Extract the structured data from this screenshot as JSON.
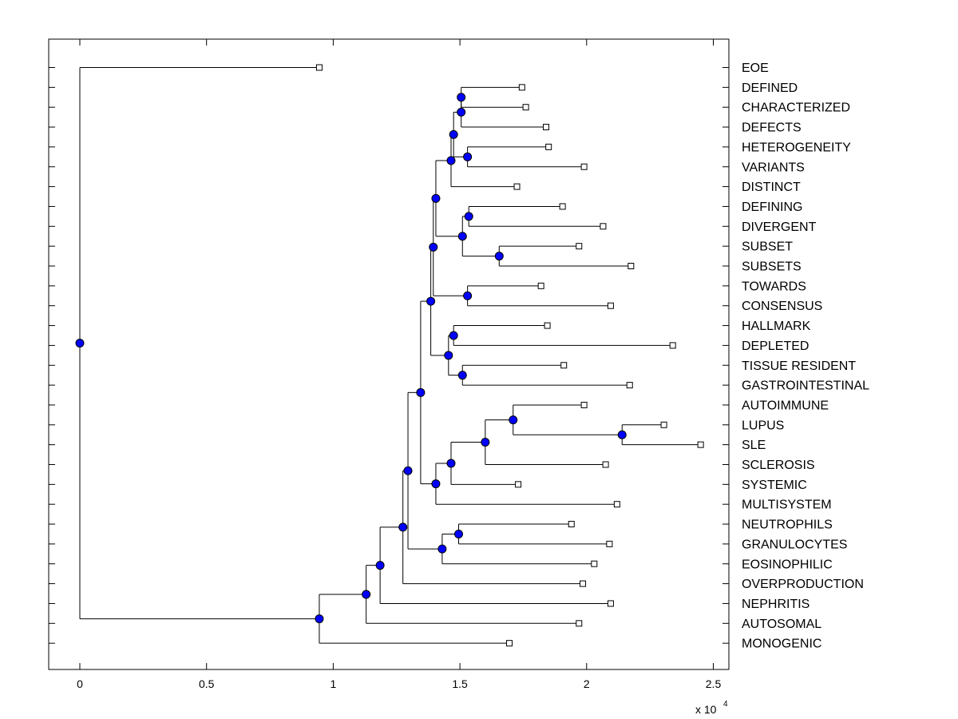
{
  "chart_data": {
    "type": "dendrogram",
    "orientation": "horizontal",
    "x_ticks": [
      0,
      0.5,
      1,
      1.5,
      2,
      2.5
    ],
    "x_tick_labels": [
      "0",
      "0.5",
      "1",
      "1.5",
      "2",
      "2.5"
    ],
    "x_scale_label": "x 10",
    "x_scale_exponent": "4",
    "xlim": [
      -0.12,
      2.56
    ],
    "leaves": [
      {
        "label": "EOE",
        "x": 0.945
      },
      {
        "label": "DEFINED",
        "x": 1.745
      },
      {
        "label": "CHARACTERIZED",
        "x": 1.76
      },
      {
        "label": "DEFECTS",
        "x": 1.84
      },
      {
        "label": "HETEROGENEITY",
        "x": 1.85
      },
      {
        "label": "VARIANTS",
        "x": 1.99
      },
      {
        "label": "DISTINCT",
        "x": 1.725
      },
      {
        "label": "DEFINING",
        "x": 1.905
      },
      {
        "label": "DIVERGENT",
        "x": 2.065
      },
      {
        "label": "SUBSET",
        "x": 1.97
      },
      {
        "label": "SUBSETS",
        "x": 2.175
      },
      {
        "label": "TOWARDS",
        "x": 1.82
      },
      {
        "label": "CONSENSUS",
        "x": 2.095
      },
      {
        "label": "HALLMARK",
        "x": 1.845
      },
      {
        "label": "DEPLETED",
        "x": 2.34
      },
      {
        "label": "TISSUE RESIDENT",
        "x": 1.91
      },
      {
        "label": "GASTROINTESTINAL",
        "x": 2.17
      },
      {
        "label": "AUTOIMMUNE",
        "x": 1.99
      },
      {
        "label": "LUPUS",
        "x": 2.305
      },
      {
        "label": "SLE",
        "x": 2.45
      },
      {
        "label": "SCLEROSIS",
        "x": 2.075
      },
      {
        "label": "SYSTEMIC",
        "x": 1.73
      },
      {
        "label": "MULTISYSTEM",
        "x": 2.12
      },
      {
        "label": "NEUTROPHILS",
        "x": 1.94
      },
      {
        "label": "GRANULOCYTES",
        "x": 2.09
      },
      {
        "label": "EOSINOPHILIC",
        "x": 2.03
      },
      {
        "label": "OVERPRODUCTION",
        "x": 1.985
      },
      {
        "label": "NEPHRITIS",
        "x": 2.095
      },
      {
        "label": "AUTOSOMAL",
        "x": 1.97
      },
      {
        "label": "MONOGENIC",
        "x": 1.695
      }
    ],
    "merges": [
      {
        "id": "n1",
        "x": 1.505,
        "children": [
          "L1",
          "L2"
        ]
      },
      {
        "id": "n2",
        "x": 1.505,
        "children": [
          "n1",
          "L3"
        ]
      },
      {
        "id": "n3",
        "x": 1.53,
        "children": [
          "L4",
          "L5"
        ]
      },
      {
        "id": "n4",
        "x": 1.475,
        "children": [
          "n2",
          "n3"
        ]
      },
      {
        "id": "n5",
        "x": 1.465,
        "children": [
          "n4",
          "L6"
        ]
      },
      {
        "id": "n6",
        "x": 1.535,
        "children": [
          "L7",
          "L8"
        ]
      },
      {
        "id": "n7",
        "x": 1.655,
        "children": [
          "L9",
          "L10"
        ]
      },
      {
        "id": "n8",
        "x": 1.51,
        "children": [
          "n6",
          "n7"
        ]
      },
      {
        "id": "n9",
        "x": 1.405,
        "children": [
          "n5",
          "n8"
        ]
      },
      {
        "id": "n10",
        "x": 1.53,
        "children": [
          "L11",
          "L12"
        ]
      },
      {
        "id": "n11",
        "x": 1.395,
        "children": [
          "n9",
          "n10"
        ]
      },
      {
        "id": "n12",
        "x": 1.475,
        "children": [
          "L13",
          "L14"
        ]
      },
      {
        "id": "n13",
        "x": 1.51,
        "children": [
          "L15",
          "L16"
        ]
      },
      {
        "id": "n14",
        "x": 1.455,
        "children": [
          "n12",
          "n13"
        ]
      },
      {
        "id": "n15",
        "x": 1.385,
        "children": [
          "n11",
          "n14"
        ]
      },
      {
        "id": "n16",
        "x": 2.14,
        "children": [
          "L18",
          "L19"
        ]
      },
      {
        "id": "n17",
        "x": 1.71,
        "children": [
          "L17",
          "n16"
        ]
      },
      {
        "id": "n18",
        "x": 1.6,
        "children": [
          "n17",
          "L20"
        ]
      },
      {
        "id": "n19",
        "x": 1.465,
        "children": [
          "n18",
          "L21"
        ]
      },
      {
        "id": "n20",
        "x": 1.405,
        "children": [
          "n19",
          "L22"
        ]
      },
      {
        "id": "n21",
        "x": 1.345,
        "children": [
          "n15",
          "n20"
        ]
      },
      {
        "id": "n22",
        "x": 1.495,
        "children": [
          "L23",
          "L24"
        ]
      },
      {
        "id": "n23",
        "x": 1.43,
        "children": [
          "n22",
          "L25"
        ]
      },
      {
        "id": "n24",
        "x": 1.295,
        "children": [
          "n21",
          "n23"
        ]
      },
      {
        "id": "n25",
        "x": 1.275,
        "children": [
          "n24",
          "L26"
        ]
      },
      {
        "id": "n26",
        "x": 1.185,
        "children": [
          "n25",
          "L27"
        ]
      },
      {
        "id": "n27",
        "x": 1.13,
        "children": [
          "n26",
          "L28"
        ]
      },
      {
        "id": "n28",
        "x": 0.945,
        "children": [
          "n27",
          "L29"
        ]
      },
      {
        "id": "n29",
        "x": 0.0,
        "children": [
          "L0",
          "n28"
        ]
      }
    ],
    "colors": {
      "node_fill": "#0000ff",
      "line": "#000000",
      "leaf_fill": "#ffffff"
    }
  }
}
